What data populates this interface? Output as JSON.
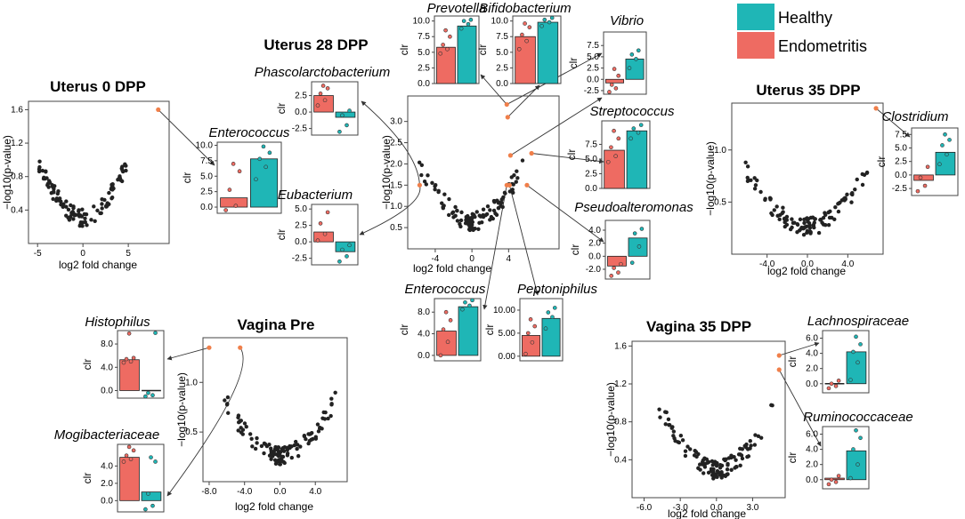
{
  "colors": {
    "healthy": "#1fb6b6",
    "endometritis": "#ee6b62",
    "highlight": "#f07f4a",
    "point": "#222222"
  },
  "chart_data": {
    "type": "scatter",
    "legend": [
      {
        "label": "Healthy",
        "color": "#1fb6b6"
      },
      {
        "label": "Endometritis",
        "color": "#ee6b62"
      }
    ],
    "volcanoes": [
      {
        "id": "u0",
        "title": "Uterus 0 DPP",
        "xlabel": "log2 fold change",
        "ylabel": "−log10(p-value)",
        "xlim": [
          -6,
          9.5
        ],
        "ylim": [
          0,
          1.7
        ],
        "xticks": [
          {
            "v": -5,
            "l": "-5"
          },
          {
            "v": 0,
            "l": "0"
          },
          {
            "v": 5,
            "l": "5"
          }
        ],
        "yticks": [
          {
            "v": 0.4,
            "l": "0.4"
          },
          {
            "v": 0.8,
            "l": "0.8"
          },
          {
            "v": 1.2,
            "l": "1.2"
          },
          {
            "v": 1.6,
            "l": "1.6"
          }
        ],
        "highlights": [
          [
            8.3,
            1.6
          ]
        ]
      },
      {
        "id": "u28",
        "title": "Uterus 28 DPP",
        "xlabel": "log2 fold change",
        "ylabel": "−log10(p-value)",
        "xlim": [
          -7,
          9.5
        ],
        "ylim": [
          0,
          3.6
        ],
        "xticks": [
          {
            "v": -4,
            "l": "-4"
          },
          {
            "v": 0,
            "l": "0"
          },
          {
            "v": 4,
            "l": "4"
          }
        ],
        "yticks": [
          {
            "v": 0.5,
            "l": "0.5"
          },
          {
            "v": 1.0,
            "l": "1.0"
          },
          {
            "v": 1.5,
            "l": "1.5"
          },
          {
            "v": 2.0,
            "l": "2.0"
          },
          {
            "v": 2.5,
            "l": "2.5"
          },
          {
            "v": 3.0,
            "l": "3.0"
          }
        ],
        "highlights": [
          [
            3.8,
            3.4
          ],
          [
            3.9,
            3.1
          ],
          [
            4.2,
            2.2
          ],
          [
            6.5,
            2.25
          ],
          [
            3.8,
            1.5
          ],
          [
            4.1,
            1.5
          ],
          [
            -5.7,
            1.5
          ],
          [
            6.0,
            1.5
          ]
        ]
      },
      {
        "id": "u35",
        "title": "Uterus 35 DPP",
        "xlabel": "log2 fold change",
        "ylabel": "−log10(p-value)",
        "xlim": [
          -7.5,
          7.5
        ],
        "ylim": [
          0,
          1.45
        ],
        "xticks": [
          {
            "v": -4,
            "l": "-4.0"
          },
          {
            "v": 0,
            "l": "0.0"
          },
          {
            "v": 4,
            "l": "4.0"
          }
        ],
        "yticks": [
          {
            "v": 0.5,
            "l": "0.5"
          },
          {
            "v": 1.0,
            "l": "1.0"
          }
        ],
        "highlights": [
          [
            6.8,
            1.4
          ]
        ]
      },
      {
        "id": "vp",
        "title": "Vagina Pre",
        "xlabel": "log2 fold change",
        "ylabel": "−log10(p-value)",
        "xlim": [
          -8.7,
          7.6
        ],
        "ylim": [
          0,
          1.45
        ],
        "xticks": [
          {
            "v": -8,
            "l": "-8.0"
          },
          {
            "v": -4,
            "l": "-4.0"
          },
          {
            "v": 0,
            "l": "0.0"
          },
          {
            "v": 4,
            "l": "4.0"
          }
        ],
        "yticks": [
          {
            "v": 0.5,
            "l": "0.5"
          },
          {
            "v": 1.0,
            "l": "1.0"
          }
        ],
        "highlights": [
          [
            -8.0,
            1.35
          ],
          [
            -4.5,
            1.35
          ]
        ]
      },
      {
        "id": "v35",
        "title": "Vagina 35 DPP",
        "xlabel": "log2 fold change",
        "ylabel": "−log10(p-value)",
        "xlim": [
          -7,
          5.7
        ],
        "ylim": [
          0,
          1.65
        ],
        "xticks": [
          {
            "v": -6,
            "l": "-6.0"
          },
          {
            "v": -3,
            "l": "-3.0"
          },
          {
            "v": 0,
            "l": "0.0"
          },
          {
            "v": 3,
            "l": "3.0"
          }
        ],
        "yticks": [
          {
            "v": 0.4,
            "l": "0.4"
          },
          {
            "v": 0.8,
            "l": "0.8"
          },
          {
            "v": 1.2,
            "l": "1.2"
          },
          {
            "v": 1.6,
            "l": "1.6"
          }
        ],
        "highlights": [
          [
            5.2,
            1.5
          ],
          [
            5.2,
            1.35
          ]
        ]
      }
    ],
    "barplots": [
      {
        "id": "u0-enterococcus",
        "taxon": "Enterococcus",
        "ylabel": "clr",
        "ylim": [
          -1,
          10.5
        ],
        "yticks": [
          {
            "v": 0,
            "l": "0.0"
          },
          {
            "v": 2.5,
            "l": "2.5"
          },
          {
            "v": 5,
            "l": "5.0"
          },
          {
            "v": 7.5,
            "l": "7.5"
          },
          {
            "v": 10,
            "l": "10.0"
          }
        ],
        "endometritis": 1.5,
        "healthy": 7.8,
        "endo_points": [
          -0.5,
          0.2,
          2.8,
          5.8,
          7.0
        ],
        "healthy_points": [
          4.5,
          6.5,
          7.8,
          8.8,
          9.8
        ]
      },
      {
        "id": "u28-prevotella",
        "taxon": "Prevotella",
        "ylabel": "clr",
        "ylim": [
          0,
          10.8
        ],
        "yticks": [
          {
            "v": 0,
            "l": "0.0"
          },
          {
            "v": 2.5,
            "l": "2.5"
          },
          {
            "v": 5,
            "l": "5.0"
          },
          {
            "v": 7.5,
            "l": "7.5"
          },
          {
            "v": 10,
            "l": "10.0"
          }
        ],
        "endometritis": 5.8,
        "healthy": 9.2,
        "endo_points": [
          4.8,
          5.5,
          6.2,
          7.5,
          8.5
        ],
        "healthy_points": [
          8.8,
          9.5,
          10.0,
          10.2
        ]
      },
      {
        "id": "u28-bifidobacterium",
        "taxon": "Bifidobacterium",
        "ylabel": "clr",
        "ylim": [
          0,
          10.8
        ],
        "yticks": [
          {
            "v": 0,
            "l": "0.0"
          },
          {
            "v": 2.5,
            "l": "2.5"
          },
          {
            "v": 5,
            "l": "5.0"
          },
          {
            "v": 7.5,
            "l": "7.5"
          },
          {
            "v": 10,
            "l": "10.0"
          }
        ],
        "endometritis": 7.5,
        "healthy": 9.8,
        "endo_points": [
          5.5,
          6.8,
          7.8,
          9.0,
          9.6
        ],
        "healthy_points": [
          9.2,
          9.8,
          10.2,
          10.5
        ]
      },
      {
        "id": "u28-vibrio",
        "taxon": "Vibrio",
        "ylabel": "clr",
        "ylim": [
          -3.3,
          10.5
        ],
        "yticks": [
          {
            "v": -2.5,
            "l": "-2.5"
          },
          {
            "v": 0,
            "l": "0.0"
          },
          {
            "v": 2.5,
            "l": "2.5"
          },
          {
            "v": 5,
            "l": "5.0"
          },
          {
            "v": 7.5,
            "l": "7.5"
          }
        ],
        "endometritis": -0.8,
        "healthy": 4.5,
        "endo_points": [
          -2.8,
          -2.0,
          -1.2,
          0.8,
          2.3
        ],
        "healthy_points": [
          2.5,
          4.5,
          5.5,
          6.4
        ]
      },
      {
        "id": "u28-phascolarctobacterium",
        "taxon": "Phascolarctobacterium",
        "ylabel": "clr",
        "ylim": [
          -3.5,
          4.6
        ],
        "yticks": [
          {
            "v": -2.5,
            "l": "-2.5"
          },
          {
            "v": 0,
            "l": "0.0"
          },
          {
            "v": 2.5,
            "l": "2.5"
          }
        ],
        "endometritis": 2.5,
        "healthy": -0.8,
        "endo_points": [
          1.0,
          1.8,
          2.8,
          3.6,
          4.0
        ],
        "healthy_points": [
          -3.0,
          -2.0,
          -0.5,
          0.2
        ]
      },
      {
        "id": "u28-streptococcus",
        "taxon": "Streptococcus",
        "ylabel": "clr",
        "ylim": [
          0,
          11.5
        ],
        "yticks": [
          {
            "v": 0,
            "l": "0.0"
          },
          {
            "v": 2.5,
            "l": "2.5"
          },
          {
            "v": 5,
            "l": "5.0"
          },
          {
            "v": 7.5,
            "l": "7.5"
          }
        ],
        "endometritis": 6.5,
        "healthy": 9.8,
        "endo_points": [
          4.5,
          5.5,
          7.0,
          8.5,
          9.8
        ],
        "healthy_points": [
          8.5,
          9.5,
          10.2,
          10.8
        ]
      },
      {
        "id": "u28-eubacterium",
        "taxon": "Eubacterium",
        "ylabel": "clr",
        "ylim": [
          -3.5,
          5.7
        ],
        "yticks": [
          {
            "v": -2.5,
            "l": "-2.5"
          },
          {
            "v": 0,
            "l": "0.0"
          },
          {
            "v": 2.5,
            "l": "2.5"
          },
          {
            "v": 5,
            "l": "5.0"
          }
        ],
        "endometritis": 1.5,
        "healthy": -1.5,
        "endo_points": [
          0.2,
          1.2,
          2.8,
          4.5
        ],
        "healthy_points": [
          -3.0,
          -2.2,
          -1.2,
          -0.5
        ]
      },
      {
        "id": "u28-pseudoalteromonas",
        "taxon": "Pseudoalteromonas",
        "ylabel": "clr",
        "ylim": [
          -3.5,
          5.5
        ],
        "yticks": [
          {
            "v": -2,
            "l": "-2.0"
          },
          {
            "v": 0,
            "l": "0.0"
          },
          {
            "v": 2,
            "l": "2.0"
          },
          {
            "v": 4,
            "l": "4.0"
          }
        ],
        "endometritis": -1.5,
        "healthy": 2.8,
        "endo_points": [
          -3.0,
          -2.5,
          -1.8,
          -1.2
        ],
        "healthy_points": [
          -1.0,
          1.5,
          3.5,
          4.2
        ]
      },
      {
        "id": "u28-enterococcus",
        "taxon": "Enterococcus",
        "ylabel": "clr",
        "ylim": [
          -1,
          10.5
        ],
        "yticks": [
          {
            "v": 0,
            "l": "0.0"
          },
          {
            "v": 4,
            "l": "4.0"
          },
          {
            "v": 8,
            "l": "8.0"
          }
        ],
        "endometritis": 4.5,
        "healthy": 9.0,
        "endo_points": [
          0.0,
          2.5,
          4.8,
          6.5,
          8.0
        ],
        "healthy_points": [
          8.5,
          9.2,
          9.8,
          10.2
        ]
      },
      {
        "id": "u28-peptoniphilus",
        "taxon": "Peptoniphilus",
        "ylabel": "clr",
        "ylim": [
          -1,
          12.5
        ],
        "yticks": [
          {
            "v": 0,
            "l": "0.00"
          },
          {
            "v": 5,
            "l": "5.00"
          },
          {
            "v": 10,
            "l": "10.00"
          }
        ],
        "endometritis": 4.5,
        "healthy": 8.2,
        "endo_points": [
          0.5,
          3.0,
          5.0,
          6.5,
          8.0
        ],
        "healthy_points": [
          6.0,
          8.5,
          9.5,
          10.5
        ]
      },
      {
        "id": "u35-clostridium",
        "taxon": "Clostridium",
        "ylabel": "clr",
        "ylim": [
          -3.8,
          8.7
        ],
        "yticks": [
          {
            "v": -2.5,
            "l": "-2.5"
          },
          {
            "v": 0,
            "l": "0.0"
          },
          {
            "v": 2.5,
            "l": "2.5"
          },
          {
            "v": 5,
            "l": "5.0"
          },
          {
            "v": 7.5,
            "l": "7.5"
          }
        ],
        "endometritis": -1.0,
        "healthy": 4.2,
        "endo_points": [
          -3.0,
          -2.0,
          -0.5,
          1.5
        ],
        "healthy_points": [
          2.0,
          3.8,
          5.5,
          6.5,
          7.5
        ]
      },
      {
        "id": "vp-histophilus",
        "taxon": "Histophilus",
        "ylabel": "clr",
        "ylim": [
          -1.3,
          10.3
        ],
        "yticks": [
          {
            "v": 0,
            "l": "0.0"
          },
          {
            "v": 4,
            "l": "4.0"
          },
          {
            "v": 8,
            "l": "8.0"
          }
        ],
        "endometritis": 5.3,
        "healthy": 0.0,
        "endo_points": [
          4.8,
          5.0,
          5.4,
          5.6,
          9.8
        ],
        "healthy_points": [
          -1.0,
          -0.8,
          -0.4,
          9.9
        ]
      },
      {
        "id": "vp-mogibacteriaceae",
        "taxon": "Mogibacteriaceae",
        "ylabel": "clr",
        "ylim": [
          -1.3,
          6.5
        ],
        "yticks": [
          {
            "v": 0,
            "l": "0.0"
          },
          {
            "v": 2,
            "l": "2.0"
          },
          {
            "v": 4,
            "l": "4.0"
          }
        ],
        "endometritis": 5.0,
        "healthy": 1.0,
        "endo_points": [
          4.5,
          4.8,
          5.2,
          5.8,
          6.2
        ],
        "healthy_points": [
          -1.0,
          -0.6,
          0.8,
          4.5,
          5.0
        ]
      },
      {
        "id": "v35-lachnospiraceae",
        "taxon": "Lachnospiraceae",
        "ylabel": "clr",
        "ylim": [
          -1.2,
          7.0
        ],
        "yticks": [
          {
            "v": 0,
            "l": "0.0"
          },
          {
            "v": 2,
            "l": "2.0"
          },
          {
            "v": 4,
            "l": "4.0"
          },
          {
            "v": 6,
            "l": "6.0"
          }
        ],
        "endometritis": 0.0,
        "healthy": 4.2,
        "endo_points": [
          -0.6,
          -0.3,
          0.0,
          0.4
        ],
        "healthy_points": [
          0.5,
          2.8,
          4.2,
          5.2,
          6.2
        ]
      },
      {
        "id": "v35-ruminococcaceae",
        "taxon": "Ruminococcaceae",
        "ylabel": "clr",
        "ylim": [
          -1.2,
          7.0
        ],
        "yticks": [
          {
            "v": 0,
            "l": "0.0"
          },
          {
            "v": 2,
            "l": "2.0"
          },
          {
            "v": 4,
            "l": "4.0"
          },
          {
            "v": 6,
            "l": "6.0"
          }
        ],
        "endometritis": 0.2,
        "healthy": 3.8,
        "endo_points": [
          -0.6,
          -0.3,
          0.0,
          0.5
        ],
        "healthy_points": [
          0.2,
          2.0,
          4.0,
          5.5,
          6.5
        ]
      }
    ]
  }
}
